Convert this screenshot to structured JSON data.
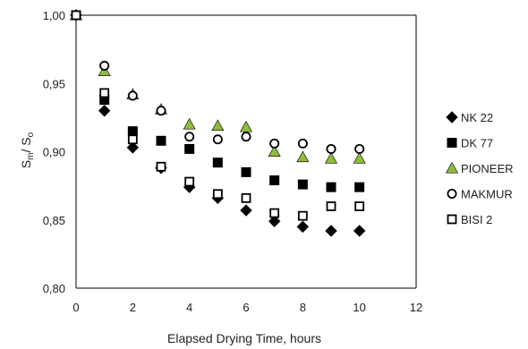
{
  "chart_data": {
    "type": "scatter",
    "xlabel": "Elapsed Drying Time, hours",
    "ylabel_main": "S",
    "ylabel_sub1": "m",
    "ylabel_sep": "/ S",
    "ylabel_sub2": "o",
    "xlim": [
      0,
      12
    ],
    "ylim": [
      0.8,
      1.0
    ],
    "x_ticks": [
      {
        "value": 0,
        "label": "0"
      },
      {
        "value": 2,
        "label": "2"
      },
      {
        "value": 4,
        "label": "4"
      },
      {
        "value": 6,
        "label": "6"
      },
      {
        "value": 8,
        "label": "8"
      },
      {
        "value": 10,
        "label": "10"
      },
      {
        "value": 12,
        "label": "12"
      }
    ],
    "y_ticks": [
      {
        "value": 0.8,
        "label": "0,80"
      },
      {
        "value": 0.85,
        "label": "0,85"
      },
      {
        "value": 0.9,
        "label": "0,90"
      },
      {
        "value": 0.95,
        "label": "0,95"
      },
      {
        "value": 1.0,
        "label": "1,00"
      }
    ],
    "grid": false,
    "legend_position": "right",
    "series": [
      {
        "name": "NK 22",
        "marker": "diamond",
        "fill": "#000000",
        "stroke": "#000000",
        "x": [
          0,
          1,
          2,
          3,
          4,
          5,
          6,
          7,
          8,
          9,
          10
        ],
        "y": [
          1.0,
          0.93,
          0.903,
          0.888,
          0.874,
          0.866,
          0.857,
          0.849,
          0.845,
          0.842,
          0.842
        ]
      },
      {
        "name": "DK 77",
        "marker": "square",
        "fill": "#000000",
        "stroke": "#000000",
        "x": [
          0,
          1,
          2,
          3,
          4,
          5,
          6,
          7,
          8,
          9,
          10
        ],
        "y": [
          1.0,
          0.938,
          0.915,
          0.908,
          0.902,
          0.892,
          0.885,
          0.879,
          0.876,
          0.874,
          0.874
        ]
      },
      {
        "name": "PIONEER",
        "marker": "triangle",
        "fill": "#8dbb3c",
        "stroke": "#000000",
        "x": [
          0,
          1,
          2,
          3,
          4,
          5,
          6,
          7,
          8,
          9,
          10
        ],
        "y": [
          1.0,
          0.959,
          0.942,
          0.931,
          0.92,
          0.919,
          0.918,
          0.9,
          0.896,
          0.895,
          0.895
        ]
      },
      {
        "name": "MAKMUR",
        "marker": "circle",
        "fill": "#ffffff",
        "stroke": "#000000",
        "x": [
          0,
          1,
          2,
          3,
          4,
          5,
          6,
          7,
          8,
          9,
          10
        ],
        "y": [
          1.0,
          0.963,
          0.941,
          0.93,
          0.911,
          0.909,
          0.911,
          0.906,
          0.906,
          0.902,
          0.902
        ]
      },
      {
        "name": "BISI 2",
        "marker": "square-open",
        "fill": "#ffffff",
        "stroke": "#000000",
        "x": [
          0,
          1,
          2,
          3,
          4,
          5,
          6,
          7,
          8,
          9,
          10
        ],
        "y": [
          1.0,
          0.943,
          0.909,
          0.889,
          0.878,
          0.869,
          0.866,
          0.855,
          0.853,
          0.86,
          0.86
        ]
      }
    ]
  }
}
